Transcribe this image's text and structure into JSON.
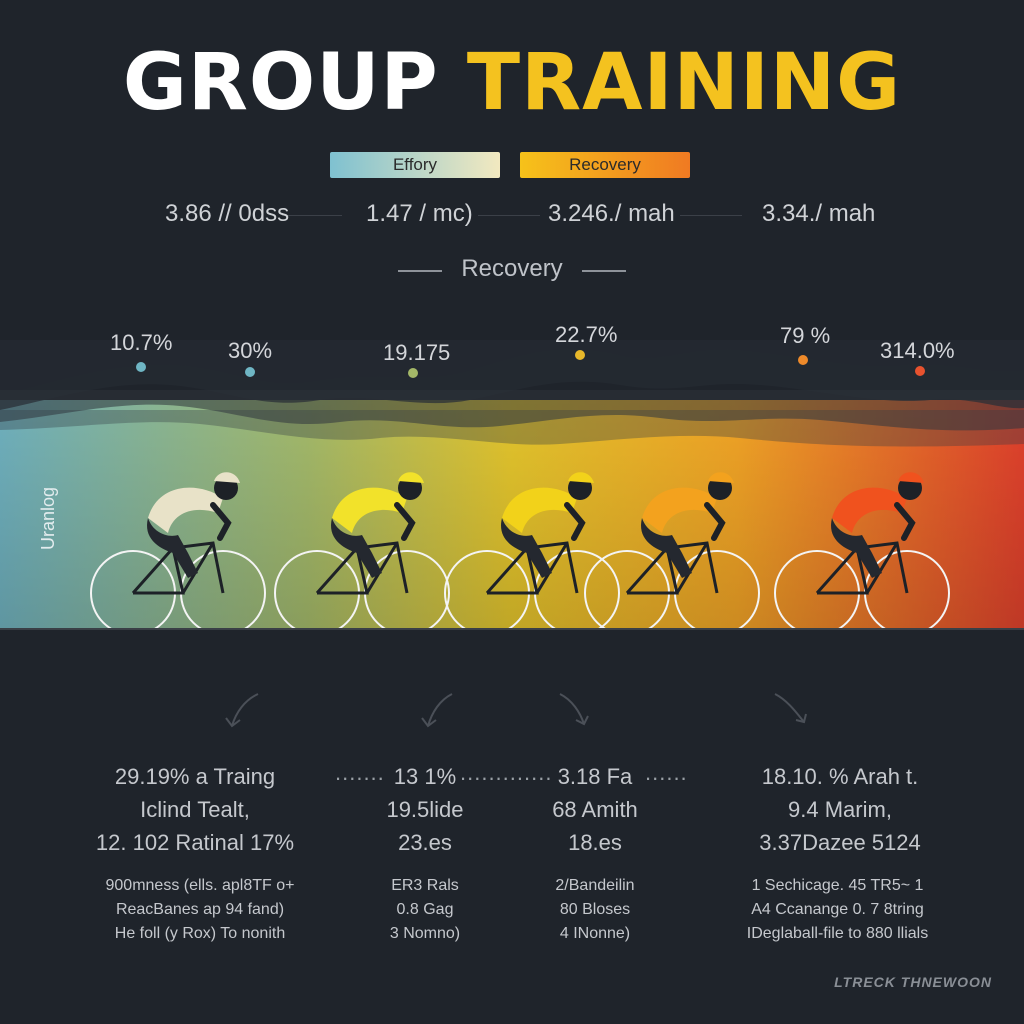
{
  "title": {
    "part1": "GROUP",
    "part2": "TRAINING"
  },
  "legend": [
    {
      "label": "Effory"
    },
    {
      "label": "Recovery"
    }
  ],
  "stats": [
    "3.86 // 0dss",
    "1.47 / mc)",
    "3.246./ mah",
    "3.34./ mah"
  ],
  "subtitle": "Recovery",
  "percent_labels": [
    "10.7%",
    "30%",
    "19.175",
    "22.7%",
    "79 %",
    "314.0%"
  ],
  "side_label": "Uranlog",
  "columns": [
    {
      "lines": [
        "29.19% a Traing",
        "Iclind Tealt,",
        "12. 102 Ratinal 17%"
      ],
      "small": [
        "900mness (ells. apl8TF o+",
        "ReacBanes ap 94 fand)",
        "He foll (y Rox) To nonith"
      ]
    },
    {
      "lines": [
        "13 1%",
        "19.5lide",
        "23.es"
      ],
      "small": [
        "ER3 Rals",
        "0.8 Gag",
        "3 Nomno)"
      ]
    },
    {
      "lines": [
        "3.18 Fa",
        "68 Amith",
        "18.es"
      ],
      "small": [
        "2/Bandeilin",
        "80 Bloses",
        "4 INonne)"
      ]
    },
    {
      "lines": [
        "18.10. % Arah t.",
        "9.4 Marim,",
        "3.37Dazee 5124"
      ],
      "small": [
        "1 Sechicage. 45 TR5~ 1",
        "A4 Ccanange 0. 7 8tring",
        "IDeglaball-file to 880 llials"
      ]
    }
  ],
  "footer": "LTRECK THNEWOON",
  "colors": {
    "background": "#1f242b",
    "title_white": "#ffffff",
    "title_yellow": "#f4c21f",
    "teal": "#6fb0bd",
    "yellow": "#f2c21b",
    "orange": "#ee7a22",
    "red": "#e0412c"
  }
}
